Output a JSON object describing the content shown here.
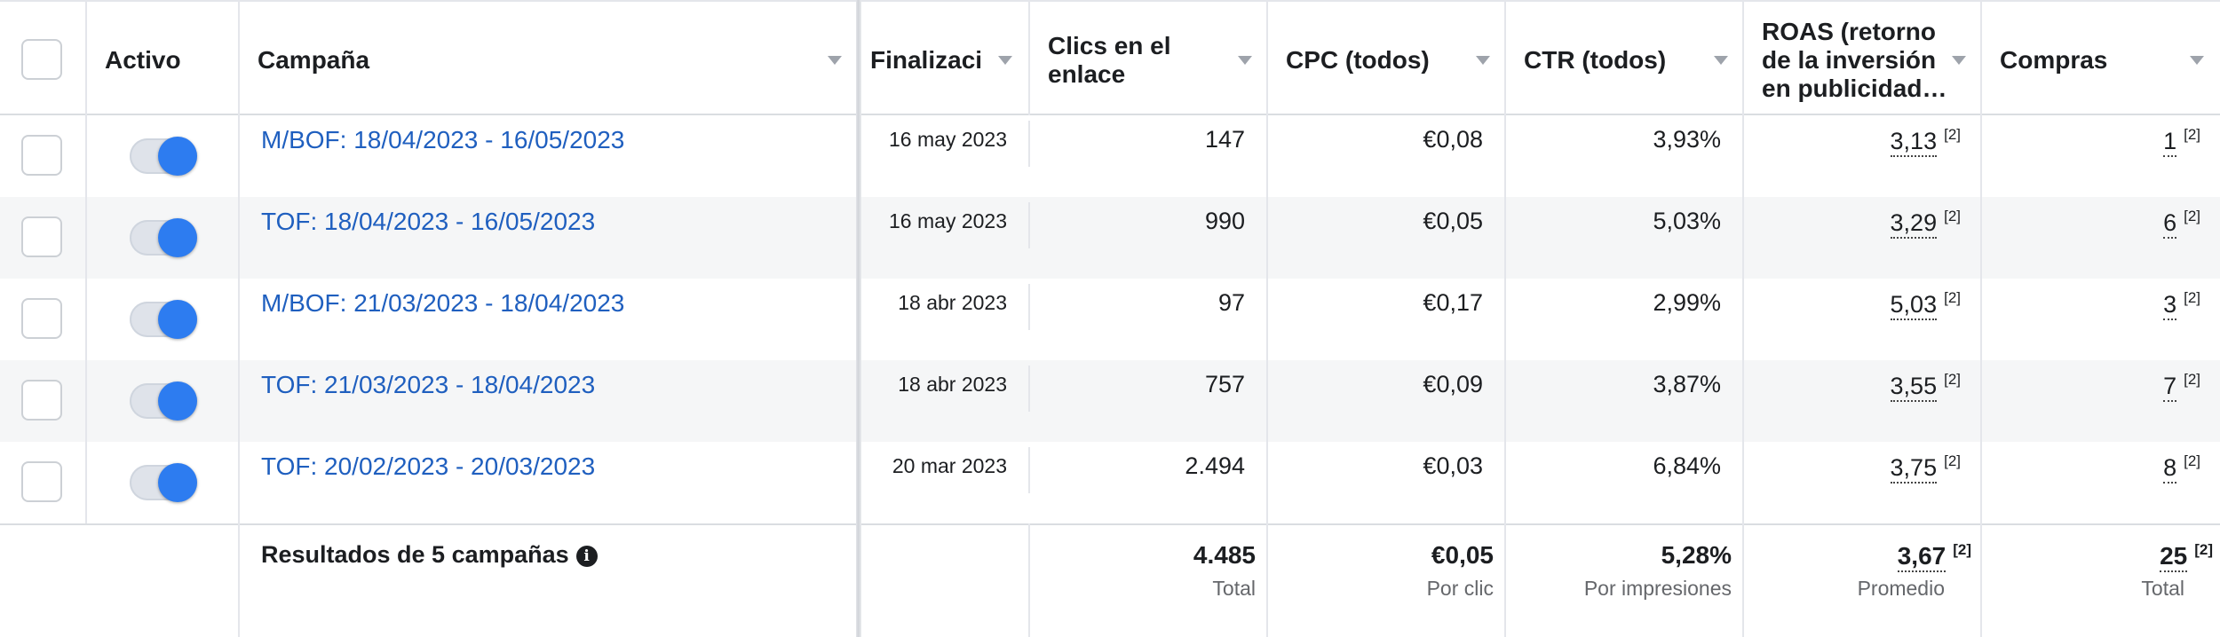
{
  "header": {
    "activo": "Activo",
    "campana": "Campaña",
    "finalizacion": "Finalizació",
    "clics": [
      "Clics en el",
      "enlace"
    ],
    "cpc": "CPC (todos)",
    "ctr": "CTR (todos)",
    "roas": [
      "ROAS (retorno",
      "de la inversión",
      "en publicidad…"
    ],
    "compras": "Compras"
  },
  "rows": [
    {
      "campaign": "M/BOF: 18/04/2023 - 16/05/2023",
      "end": "16 may 2023",
      "clicks": "147",
      "cpc": "€0,08",
      "ctr": "3,93%",
      "roas": "3,13",
      "roas_note": "[2]",
      "purchases": "1",
      "purchases_note": "[2]"
    },
    {
      "campaign": "TOF: 18/04/2023 - 16/05/2023",
      "end": "16 may 2023",
      "clicks": "990",
      "cpc": "€0,05",
      "ctr": "5,03%",
      "roas": "3,29",
      "roas_note": "[2]",
      "purchases": "6",
      "purchases_note": "[2]"
    },
    {
      "campaign": "M/BOF: 21/03/2023 - 18/04/2023",
      "end": "18 abr 2023",
      "clicks": "97",
      "cpc": "€0,17",
      "ctr": "2,99%",
      "roas": "5,03",
      "roas_note": "[2]",
      "purchases": "3",
      "purchases_note": "[2]"
    },
    {
      "campaign": "TOF: 21/03/2023 - 18/04/2023",
      "end": "18 abr 2023",
      "clicks": "757",
      "cpc": "€0,09",
      "ctr": "3,87%",
      "roas": "3,55",
      "roas_note": "[2]",
      "purchases": "7",
      "purchases_note": "[2]"
    },
    {
      "campaign": "TOF: 20/02/2023 - 20/03/2023",
      "end": "20 mar 2023",
      "clicks": "2.494",
      "cpc": "€0,03",
      "ctr": "6,84%",
      "roas": "3,75",
      "roas_note": "[2]",
      "purchases": "8",
      "purchases_note": "[2]"
    }
  ],
  "footer": {
    "results_label": "Resultados de 5 campañas",
    "info_glyph": "i",
    "clicks": "4.485",
    "clicks_sub": "Total",
    "cpc": "€0,05",
    "cpc_sub": "Por clic",
    "ctr": "5,28%",
    "ctr_sub": "Por impresiones",
    "roas": "3,67",
    "roas_note": "[2]",
    "roas_sub": "Promedio",
    "purchases": "25",
    "purchases_note": "[2]",
    "purchases_sub": "Total"
  },
  "colors": {
    "link": "#1f5fbf",
    "toggle_on": "#2d7cf0"
  }
}
